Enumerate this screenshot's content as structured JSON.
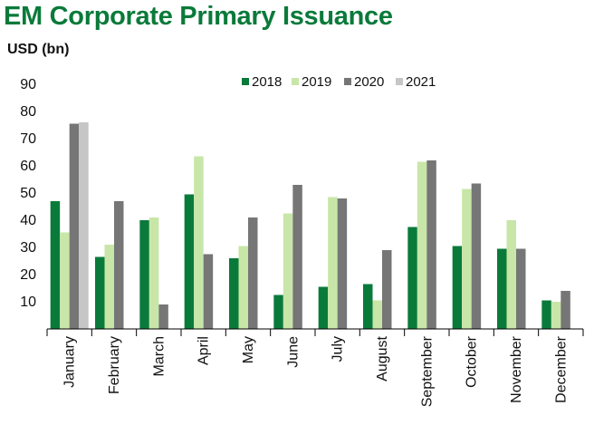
{
  "chart_data": {
    "type": "bar",
    "title": "EM Corporate Primary Issuance",
    "ylabel": "USD (bn)",
    "xlabel": "",
    "ylim": [
      0,
      90
    ],
    "yticks": [
      10,
      20,
      30,
      40,
      50,
      60,
      70,
      80,
      90
    ],
    "grid": false,
    "legend_position": "top",
    "categories": [
      "January",
      "February",
      "March",
      "April",
      "May",
      "June",
      "July",
      "August",
      "September",
      "October",
      "November",
      "December"
    ],
    "series": [
      {
        "name": "2018",
        "color": "#0a7a3a",
        "values": [
          47,
          26.5,
          40,
          49.5,
          26,
          12.5,
          15.5,
          16.5,
          37.5,
          30.5,
          29.5,
          10.5
        ]
      },
      {
        "name": "2019",
        "color": "#c8e6a8",
        "values": [
          35.5,
          31,
          41,
          63.5,
          30.5,
          42.5,
          48.5,
          10.5,
          61.5,
          51.5,
          40,
          10
        ]
      },
      {
        "name": "2020",
        "color": "#767676",
        "values": [
          75.5,
          47,
          9,
          27.5,
          41,
          53,
          48,
          29,
          62,
          53.5,
          29.5,
          14
        ]
      },
      {
        "name": "2021",
        "color": "#c6c6c6",
        "values": [
          76,
          null,
          null,
          null,
          null,
          null,
          null,
          null,
          null,
          null,
          null,
          null
        ]
      }
    ]
  }
}
